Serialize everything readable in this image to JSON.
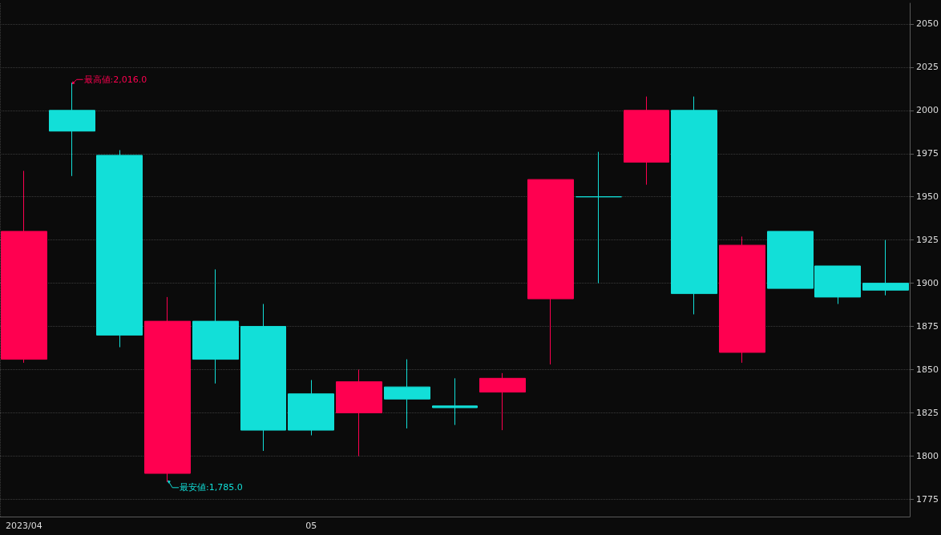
{
  "chart_data": {
    "type": "candlestick",
    "categories": [
      "2023/04",
      null,
      null,
      null,
      null,
      null,
      "05",
      null,
      null,
      null,
      null,
      null,
      null,
      null,
      null,
      null,
      null,
      null,
      null
    ],
    "ohlc": [
      [
        1856,
        1965,
        1854,
        1930
      ],
      [
        2000,
        2016,
        1962,
        1988
      ],
      [
        1974,
        1977,
        1863,
        1870
      ],
      [
        1790,
        1892,
        1785,
        1878
      ],
      [
        1878,
        1908,
        1842,
        1856
      ],
      [
        1875,
        1888,
        1803,
        1815
      ],
      [
        1836,
        1844,
        1812,
        1815
      ],
      [
        1825,
        1850,
        1800,
        1843
      ],
      [
        1840,
        1856,
        1816,
        1833
      ],
      [
        1829,
        1845,
        1818,
        1828
      ],
      [
        1837,
        1848,
        1815,
        1845
      ],
      [
        1891,
        1960,
        1853,
        1960
      ],
      [
        1950,
        1976,
        1900,
        1950
      ],
      [
        1970,
        2008,
        1957,
        2000
      ],
      [
        2000,
        2008,
        1882,
        1894
      ],
      [
        1860,
        1927,
        1854,
        1922
      ],
      [
        1930,
        1930,
        1897,
        1897
      ],
      [
        1910,
        1910,
        1888,
        1892
      ],
      [
        1900,
        1925,
        1893,
        1896
      ]
    ],
    "colors": [
      "#ff0050",
      "#12dfd8",
      "#12dfd8",
      "#ff0050",
      "#12dfd8",
      "#12dfd8",
      "#12dfd8",
      "#ff0050",
      "#12dfd8",
      "#12dfd8",
      "#ff0050",
      "#ff0050",
      "#12dfd8",
      "#ff0050",
      "#12dfd8",
      "#ff0050",
      "#12dfd8",
      "#12dfd8",
      "#12dfd8"
    ],
    "ylim": [
      1765,
      2062
    ],
    "yticks": [
      1775,
      1800,
      1825,
      1850,
      1875,
      1900,
      1925,
      1950,
      1975,
      2000,
      2025,
      2050
    ],
    "grid": true,
    "annotations": [
      "最高値:2,016.0",
      "最安値:1,785.0"
    ]
  }
}
